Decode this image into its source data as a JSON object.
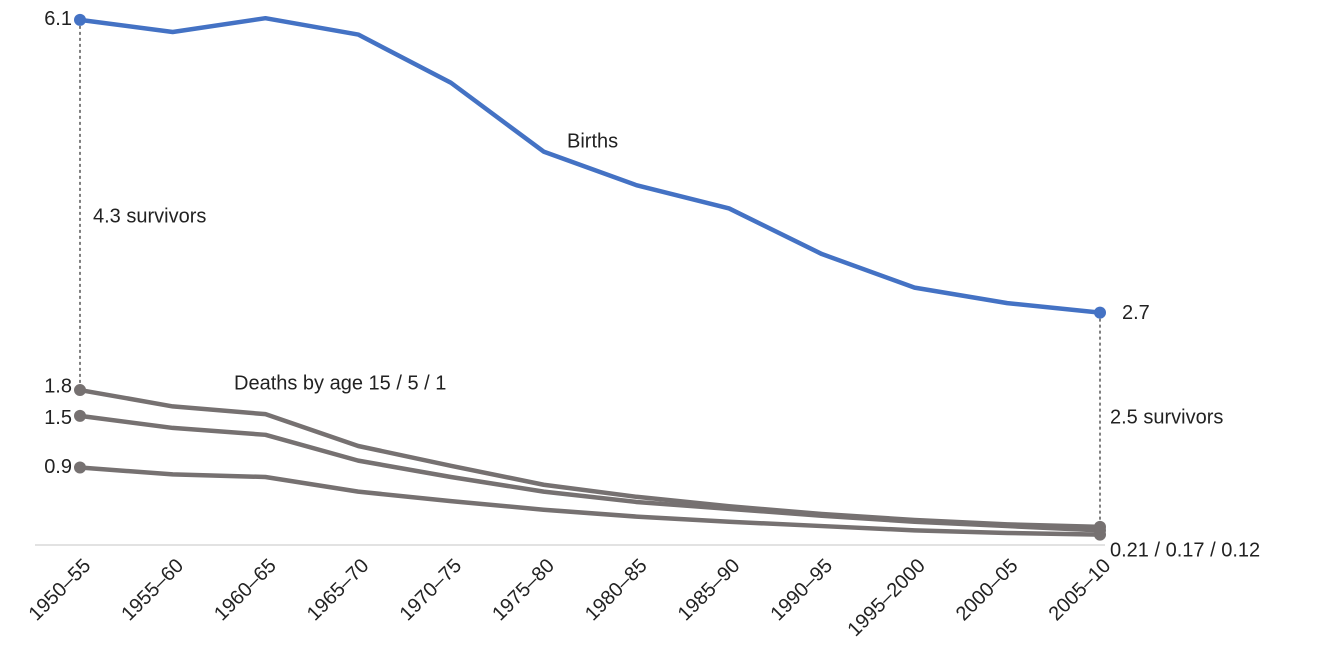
{
  "chart_data": {
    "type": "line",
    "categories": [
      "1950–55",
      "1955–60",
      "1960–65",
      "1965–70",
      "1970–75",
      "1975–80",
      "1980–85",
      "1985–90",
      "1990–95",
      "1995–2000",
      "2000–05",
      "2005–10"
    ],
    "series": [
      {
        "name": "Births",
        "color": "#4472c4",
        "values": [
          6.1,
          5.96,
          6.12,
          5.93,
          5.37,
          4.57,
          4.18,
          3.91,
          3.38,
          2.99,
          2.81,
          2.7
        ]
      },
      {
        "color": "#767171",
        "values": [
          1.8,
          1.61,
          1.52,
          1.15,
          0.92,
          0.7,
          0.56,
          0.45,
          0.36,
          0.29,
          0.24,
          0.21
        ]
      },
      {
        "color": "#767171",
        "values": [
          1.5,
          1.36,
          1.28,
          0.98,
          0.79,
          0.62,
          0.5,
          0.42,
          0.34,
          0.27,
          0.22,
          0.17
        ]
      },
      {
        "color": "#767171",
        "values": [
          0.9,
          0.82,
          0.79,
          0.62,
          0.51,
          0.41,
          0.33,
          0.27,
          0.22,
          0.17,
          0.14,
          0.12
        ]
      }
    ],
    "annotations": {
      "deaths": "Deaths by age 15 / 5 / 1",
      "survivors_start": "4.3 survivors",
      "survivors_end": "2.5 survivors",
      "deaths_end": "0.21 / 0.17 / 0.12"
    },
    "ylim": [
      0,
      6.25
    ]
  }
}
